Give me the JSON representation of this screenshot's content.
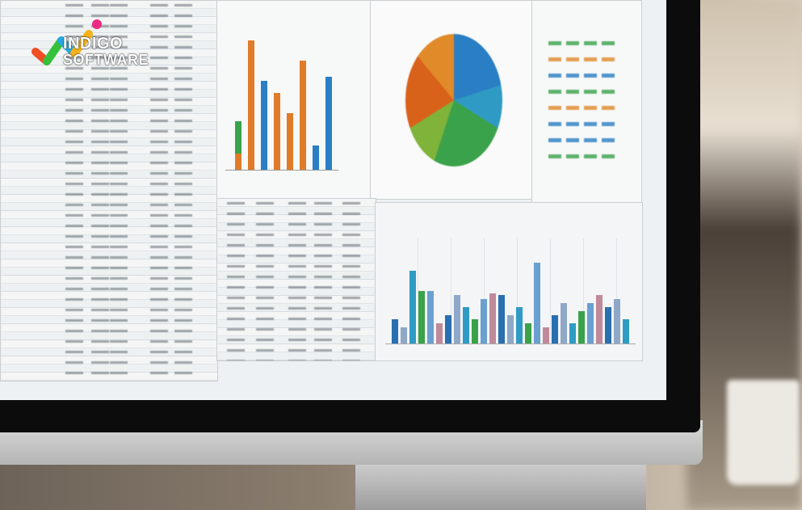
{
  "logo": {
    "line1": "INDIGO",
    "line2": "SOFTWARE",
    "colors": [
      "#f04e23",
      "#35c23a",
      "#27a9e1",
      "#f5b21a",
      "#ec2a85"
    ]
  },
  "scene": {
    "description_colors": {
      "bezel": "#0c0c0d",
      "screen": "#eef1f3",
      "accent_blue": "#2a7ec3",
      "accent_orange": "#d9621a",
      "accent_green": "#3aa24a"
    }
  }
}
